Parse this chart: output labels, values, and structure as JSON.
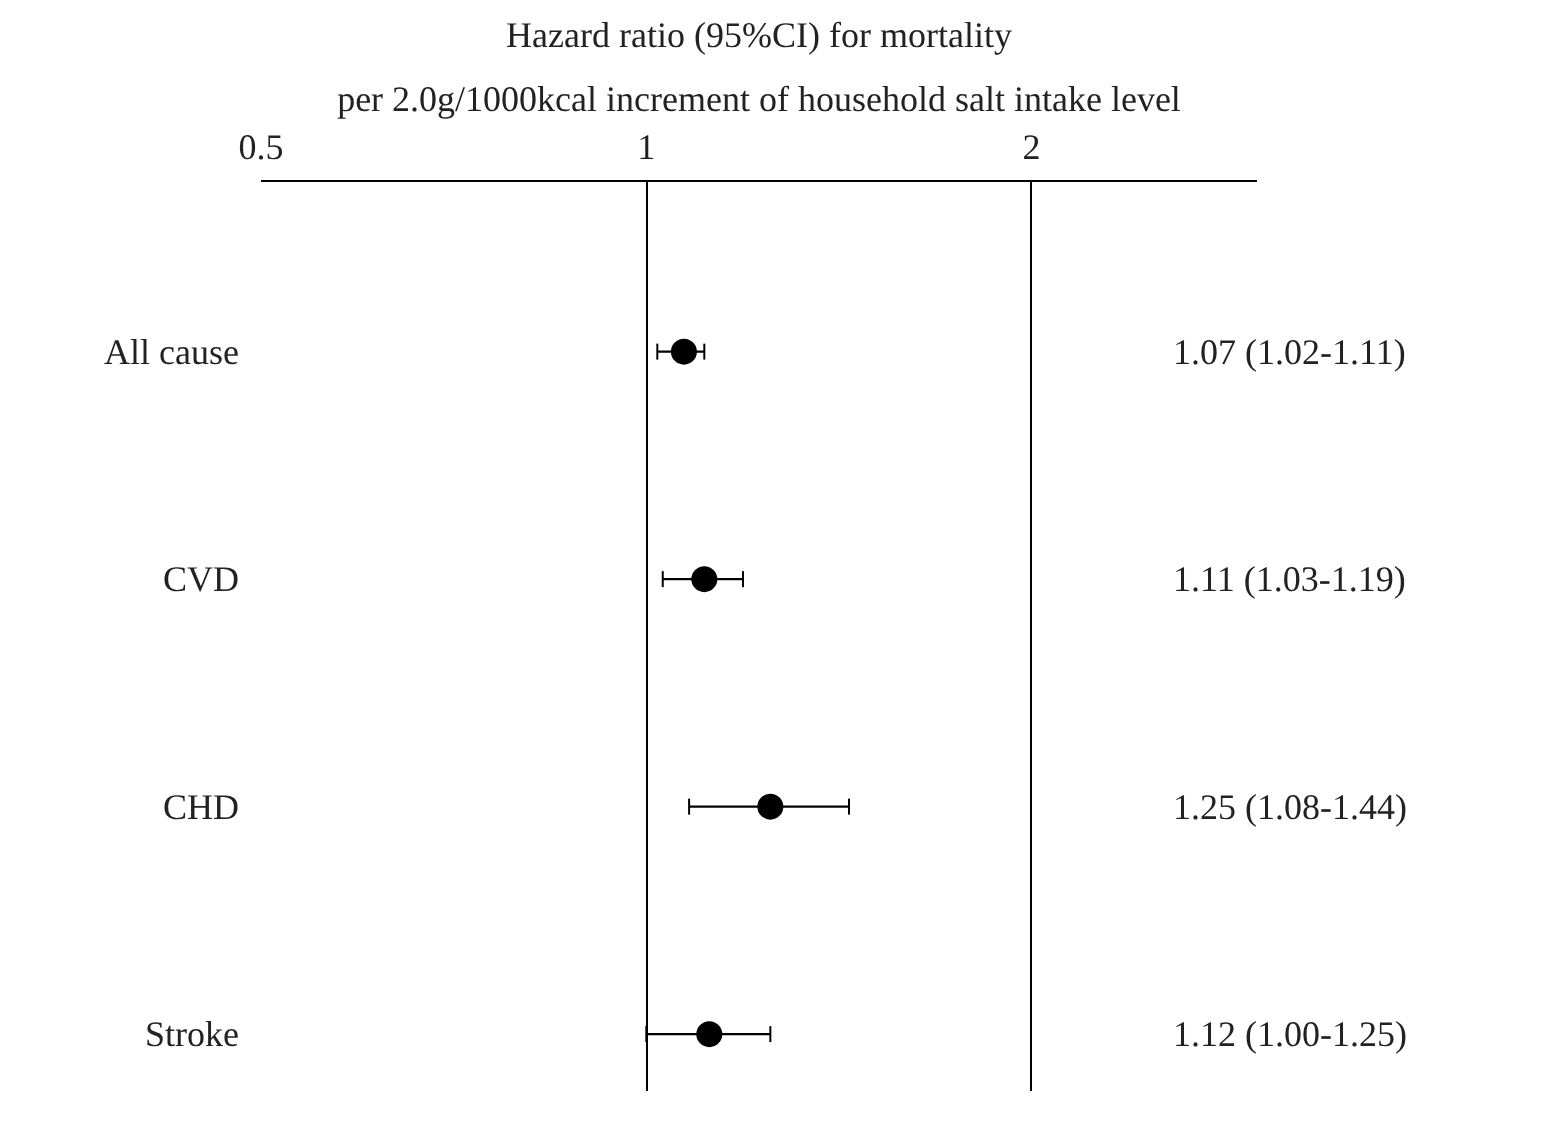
{
  "chart_data": {
    "type": "scatter",
    "orientation": "horizontal",
    "title": "Hazard ratio (95%CI) for mortality",
    "subtitle": "per 2.0g/1000kcal increment of household salt intake level",
    "categories": [
      "All cause",
      "CVD",
      "CHD",
      "Stroke"
    ],
    "values": [
      1.07,
      1.11,
      1.25,
      1.12
    ],
    "errors": [
      [
        1.02,
        1.11
      ],
      [
        1.03,
        1.19
      ],
      [
        1.08,
        1.44
      ],
      [
        1.0,
        1.25
      ]
    ],
    "value_labels": [
      "1.07 (1.02-1.11)",
      "1.11 (1.03-1.19)",
      "1.25 (1.08-1.44)",
      "1.12 (1.00-1.25)"
    ],
    "color": "#000000",
    "marker": "circle",
    "log": "x",
    "grid": "x",
    "xlim": [
      0.5,
      3.0
    ],
    "xticks": [
      0.5,
      1,
      2
    ]
  }
}
